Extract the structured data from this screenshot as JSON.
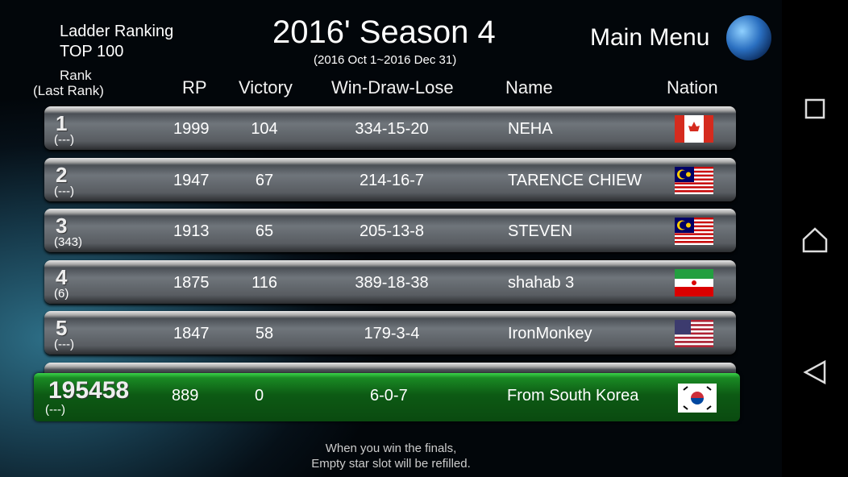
{
  "header": {
    "ladder_label": "Ladder Ranking",
    "top_label": "TOP 100",
    "season_title": "2016' Season 4",
    "season_dates": "(2016 Oct 1~2016 Dec 31)",
    "main_menu": "Main Menu"
  },
  "columns": {
    "rank": "Rank",
    "last_rank": "(Last Rank)",
    "rp": "RP",
    "victory": "Victory",
    "wdl": "Win-Draw-Lose",
    "name": "Name",
    "nation": "Nation"
  },
  "rows": [
    {
      "rank": "1",
      "last": "(---)",
      "rp": "1999",
      "victory": "104",
      "wdl": "334-15-20",
      "name": "NEHA",
      "nation": "canada"
    },
    {
      "rank": "2",
      "last": "(---)",
      "rp": "1947",
      "victory": "67",
      "wdl": "214-16-7",
      "name": "TARENCE CHIEW",
      "nation": "malaysia"
    },
    {
      "rank": "3",
      "last": "(343)",
      "rp": "1913",
      "victory": "65",
      "wdl": "205-13-8",
      "name": "STEVEN",
      "nation": "malaysia"
    },
    {
      "rank": "4",
      "last": "(6)",
      "rp": "1875",
      "victory": "116",
      "wdl": "389-18-38",
      "name": "shahab 3",
      "nation": "iran"
    },
    {
      "rank": "5",
      "last": "(---)",
      "rp": "1847",
      "victory": "58",
      "wdl": "179-3-4",
      "name": "IronMonkey",
      "nation": "usa"
    }
  ],
  "me": {
    "rank": "195458",
    "last": "(---)",
    "rp": "889",
    "victory": "0",
    "wdl": "6-0-7",
    "name": "From South Korea",
    "nation": "south-korea"
  },
  "footer": {
    "line1": "When you win the finals,",
    "line2": "Empty star slot will be refilled."
  },
  "colors": {
    "player_row": "#1a8a24"
  }
}
